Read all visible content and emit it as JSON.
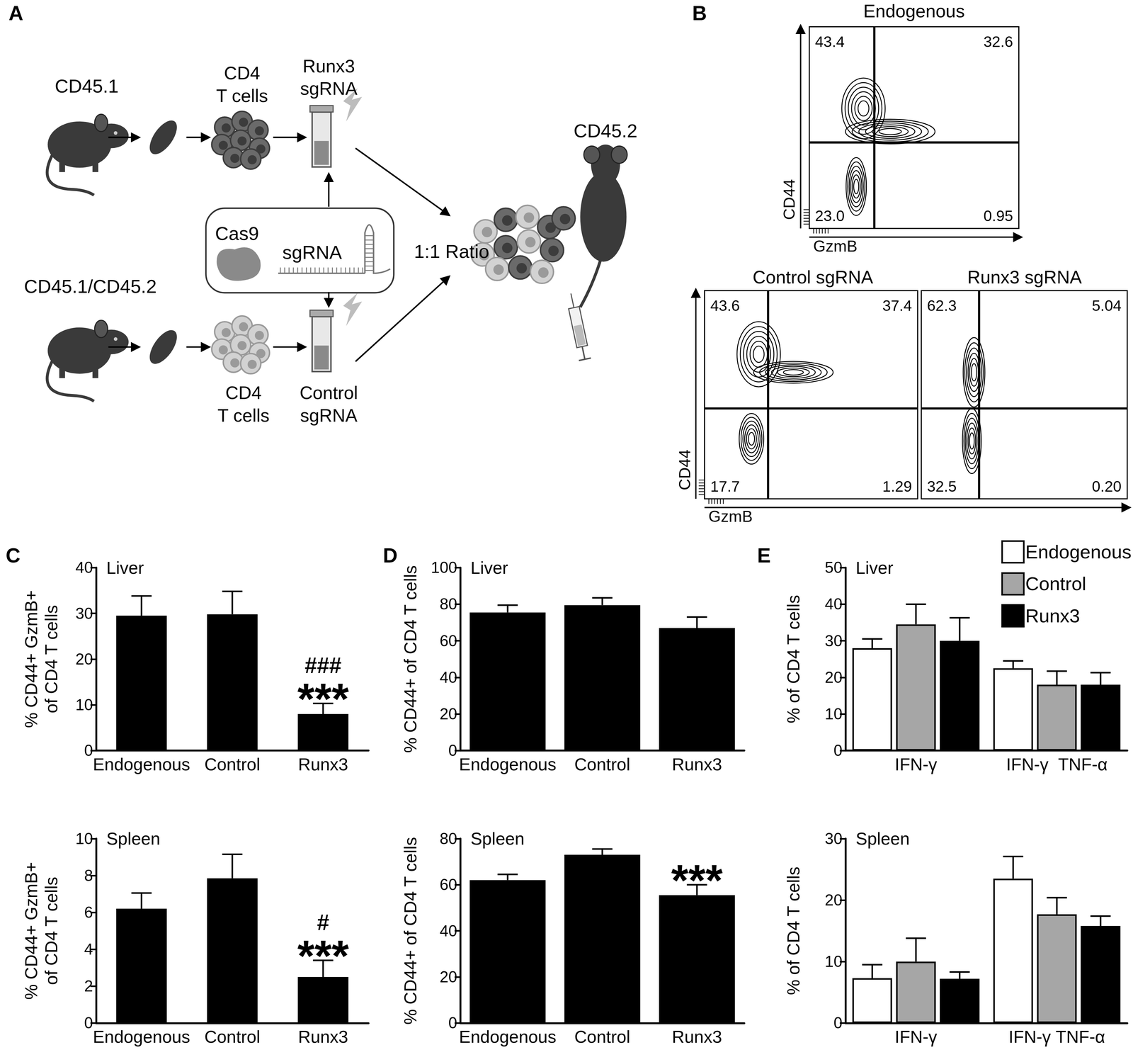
{
  "panel_labels": [
    "A",
    "B",
    "C",
    "D",
    "E"
  ],
  "schematic": {
    "donors": [
      {
        "strain": "CD45.1",
        "cells": "CD4\nT cells",
        "treatment": "Runx3\nsgRNA"
      },
      {
        "strain": "CD45.1/CD45.2",
        "cells": "CD4\nT cells",
        "treatment": "Control\nsgRNA"
      }
    ],
    "reagents": [
      "Cas9",
      "sgRNA"
    ],
    "mixing": "1:1 Ratio",
    "recipient": "CD45.2"
  },
  "flow_plots": {
    "x_label": "GzmB",
    "y_label": "CD44",
    "plots": [
      {
        "title": "Endogenous",
        "upper_left": "43.4",
        "upper_right": "32.6",
        "lower_left": "23.0",
        "lower_right": "0.95"
      },
      {
        "title": "Control sgRNA",
        "upper_left": "43.6",
        "upper_right": "37.4",
        "lower_left": "17.7",
        "lower_right": "1.29"
      },
      {
        "title": "Runx3 sgRNA",
        "upper_left": "62.3",
        "upper_right": "5.04",
        "lower_left": "32.5",
        "lower_right": "0.20"
      }
    ]
  },
  "chart_data": [
    {
      "type": "bar",
      "title": "Liver",
      "y_label": "% CD44+ GzmB+\nof CD4 T cells",
      "categories": [
        "Endogenous",
        "Control",
        "Runx3"
      ],
      "values": [
        29.5,
        29.8,
        8
      ],
      "errors": [
        4.3,
        5,
        2.3
      ],
      "color": "#000000",
      "ylim": [
        0,
        40
      ],
      "yticks": [
        0,
        10,
        20,
        30,
        40
      ],
      "annotations": [
        {
          "category": "Runx3",
          "texts": [
            "###",
            "***"
          ]
        }
      ]
    },
    {
      "type": "bar",
      "title": "Spleen",
      "y_label": "% CD44+ GzmB+\nof CD4 T cells",
      "categories": [
        "Endogenous",
        "Control",
        "Runx3"
      ],
      "values": [
        6.2,
        7.85,
        2.5
      ],
      "errors": [
        0.85,
        1.3,
        0.9
      ],
      "color": "#000000",
      "ylim": [
        0,
        10
      ],
      "yticks": [
        0,
        2,
        4,
        6,
        8,
        10
      ],
      "annotations": [
        {
          "category": "Runx3",
          "texts": [
            "#",
            "***"
          ]
        }
      ]
    },
    {
      "type": "bar",
      "title": "Liver",
      "y_label": "% CD44+ of CD4 T cells",
      "categories": [
        "Endogenous",
        "Control",
        "Runx3"
      ],
      "values": [
        75.5,
        79.5,
        67
      ],
      "errors": [
        4,
        4,
        6
      ],
      "color": "#000000",
      "ylim": [
        0,
        100
      ],
      "yticks": [
        0,
        20,
        40,
        60,
        80,
        100
      ]
    },
    {
      "type": "bar",
      "title": "Spleen",
      "y_label": "% CD44+ of CD4 T cells",
      "categories": [
        "Endogenous",
        "Control",
        "Runx3"
      ],
      "values": [
        62,
        73,
        55.5
      ],
      "errors": [
        2.5,
        2.5,
        4.5
      ],
      "color": "#000000",
      "ylim": [
        0,
        80
      ],
      "yticks": [
        0,
        20,
        40,
        60,
        80
      ],
      "annotations": [
        {
          "category": "Runx3",
          "texts": [
            "***"
          ]
        }
      ]
    },
    {
      "type": "bar",
      "title": "Liver",
      "y_label": "% of CD4 T cells",
      "categories": [
        "IFN-γ",
        "IFN-γ  TNF-α"
      ],
      "series": [
        {
          "name": "Endogenous",
          "color": "#ffffff",
          "values": [
            28,
            22.5
          ],
          "errors": [
            2.5,
            2
          ]
        },
        {
          "name": "Control",
          "color": "#a6a6a6",
          "values": [
            34.5,
            18
          ],
          "errors": [
            5.5,
            3.7
          ]
        },
        {
          "name": "Runx3",
          "color": "#000000",
          "values": [
            30,
            18
          ],
          "errors": [
            6.3,
            3.3
          ]
        }
      ],
      "ylim": [
        0,
        50
      ],
      "yticks": [
        0,
        10,
        20,
        30,
        40,
        50
      ],
      "legend": "upper right"
    },
    {
      "type": "bar",
      "title": "Spleen",
      "y_label": "% of CD4 T cells",
      "categories": [
        "IFN-γ",
        "IFN-γ TNF-α"
      ],
      "series": [
        {
          "name": "Endogenous",
          "color": "#ffffff",
          "values": [
            7.3,
            23.5
          ],
          "errors": [
            2.2,
            3.6
          ]
        },
        {
          "name": "Control",
          "color": "#a6a6a6",
          "values": [
            10,
            17.7
          ],
          "errors": [
            3.8,
            2.7
          ]
        },
        {
          "name": "Runx3",
          "color": "#000000",
          "values": [
            7.2,
            15.8
          ],
          "errors": [
            1.1,
            1.6
          ]
        }
      ],
      "ylim": [
        0,
        30
      ],
      "yticks": [
        0,
        10,
        20,
        30
      ]
    }
  ]
}
